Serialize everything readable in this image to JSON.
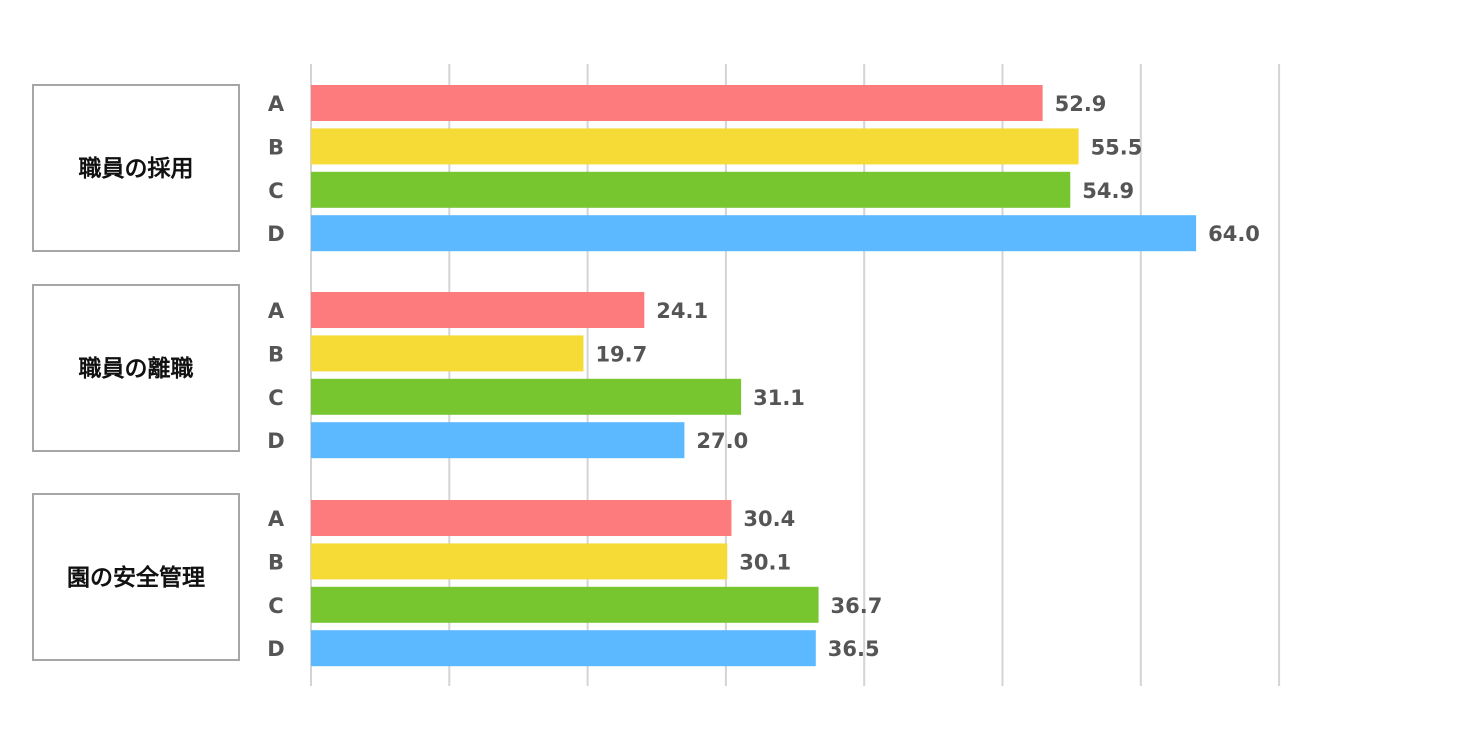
{
  "chart_data": {
    "type": "bar",
    "orientation": "horizontal",
    "xlim": [
      0,
      70
    ],
    "grid": true,
    "categories": [
      "A",
      "B",
      "C",
      "D"
    ],
    "colors": [
      "#fd7b7d",
      "#f6da35",
      "#78c62f",
      "#5cb9ff"
    ],
    "groups": [
      {
        "label": "職員の採用",
        "values": [
          52.9,
          55.5,
          54.9,
          64.0
        ],
        "value_labels": [
          "52.9",
          "55.5",
          "54.9",
          "64.0"
        ]
      },
      {
        "label": "職員の離職",
        "values": [
          24.1,
          19.7,
          31.1,
          27.0
        ],
        "value_labels": [
          "24.1",
          "19.7",
          "31.1",
          "27.0"
        ]
      },
      {
        "label": "園の安全管理",
        "values": [
          30.4,
          30.1,
          36.7,
          36.5
        ],
        "value_labels": [
          "30.4",
          "30.1",
          "36.7",
          "36.5"
        ]
      }
    ]
  }
}
